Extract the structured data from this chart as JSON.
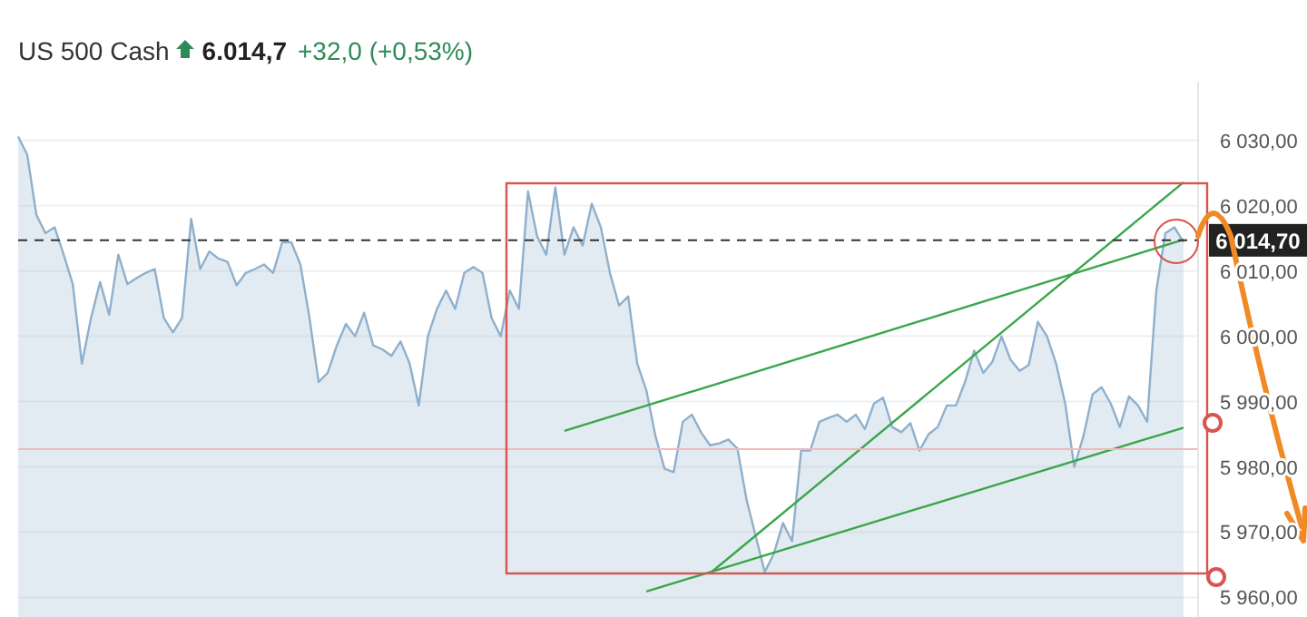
{
  "chart_data": {
    "type": "area",
    "title": "US 500 Cash",
    "annotations": [
      "6.014,7",
      "+32,0 (+0,53%)"
    ],
    "categories": [
      null,
      null,
      null,
      null,
      null,
      null,
      null,
      null,
      null,
      null,
      null,
      null,
      null,
      null,
      null,
      null,
      null,
      null,
      null,
      null,
      null,
      null,
      null,
      null,
      null,
      null,
      null,
      null,
      null,
      null,
      null,
      null,
      null,
      null,
      null,
      null,
      null,
      null,
      null,
      null,
      null,
      null,
      null,
      null,
      null,
      null,
      null,
      null,
      null,
      null,
      null,
      null,
      null,
      null,
      null,
      null,
      null,
      null,
      null,
      null,
      null,
      null,
      null,
      null,
      null,
      null,
      null,
      null,
      null,
      null,
      null,
      null,
      null,
      null,
      null,
      null,
      null,
      null,
      null,
      null,
      null,
      null,
      null,
      null,
      null,
      null,
      null,
      null,
      null,
      null,
      null,
      null,
      null,
      null,
      null,
      null,
      null,
      null,
      null,
      null,
      null,
      null,
      null,
      null,
      null,
      null,
      null,
      null,
      null,
      null,
      null,
      null,
      null,
      null,
      null,
      null,
      null,
      null,
      null,
      null,
      null,
      null,
      null,
      null,
      null,
      null,
      null,
      null,
      null
    ],
    "series": [
      {
        "color": "#8fb0cc",
        "values": [
          6030.6,
          6027.8,
          6018.6,
          6015.8,
          6016.7,
          6012.5,
          6008,
          5995.8,
          6002.8,
          6008.3,
          6003.3,
          6012.5,
          6008,
          6008.9,
          6009.7,
          6010.3,
          6002.8,
          6000.6,
          6002.8,
          6018,
          6010.3,
          6013,
          6011.9,
          6011.4,
          6007.8,
          6009.7,
          6010.3,
          6011,
          6009.7,
          6014.4,
          6014.4,
          6011,
          6002.8,
          5993,
          5994.4,
          5998.6,
          6001.9,
          6000,
          6003.6,
          5998.6,
          5998,
          5997,
          5999.2,
          5995.8,
          5989.4,
          6000,
          6004.2,
          6007,
          6004.2,
          6009.7,
          6010.6,
          6009.7,
          6002.8,
          6000,
          6007,
          6004.2,
          6022.2,
          6015.3,
          6012.5,
          6022.8,
          6012.5,
          6016.7,
          6013.9,
          6020.3,
          6016.7,
          6009.7,
          6004.7,
          6006.1,
          5995.8,
          5991.7,
          5984.7,
          5979.7,
          5979.2,
          5986.9,
          5988,
          5985.3,
          5983.3,
          5983.6,
          5984.2,
          5982.8,
          5975,
          5969.4,
          5963.9,
          5966.7,
          5971.4,
          5968.6,
          5982.5,
          5982.5,
          5986.9,
          5987.5,
          5988,
          5986.9,
          5988,
          5985.8,
          5989.7,
          5990.6,
          5986.1,
          5985.3,
          5986.7,
          5982.5,
          5985,
          5986.1,
          5989.4,
          5989.4,
          5993,
          5997.8,
          5994.4,
          5996.1,
          6000,
          5996.4,
          5994.7,
          5995.6,
          6002.2,
          6000,
          5995.8,
          5989.7,
          5980,
          5984.7,
          5991.1,
          5992.2,
          5989.7,
          5986.1,
          5990.8,
          5989.4,
          5986.9,
          6006.9,
          6015.8,
          6016.7,
          6014.4
        ]
      },
      {
        "type": "line",
        "color": "#3aa64a",
        "values": [
          null,
          null,
          null,
          null,
          null,
          null,
          null,
          null,
          null,
          null,
          null,
          null,
          null,
          null,
          null,
          null,
          null,
          null,
          null,
          null,
          null,
          null,
          null,
          null,
          null,
          null,
          null,
          null,
          null,
          null,
          null,
          null,
          null,
          null,
          null,
          null,
          null,
          null,
          null,
          null,
          null,
          null,
          null,
          null,
          null,
          null,
          null,
          null,
          null,
          null,
          null,
          null,
          null,
          null,
          null,
          null,
          null,
          null,
          null,
          null,
          5985.5,
          null,
          null,
          null,
          null,
          null,
          null,
          null,
          null,
          null,
          null,
          null,
          null,
          null,
          null,
          null,
          null,
          null,
          null,
          null,
          null,
          null,
          null,
          null,
          null,
          null,
          null,
          null,
          null,
          null,
          null,
          null,
          null,
          null,
          null,
          null,
          null,
          null,
          null,
          null,
          null,
          null,
          null,
          null,
          null,
          null,
          null,
          null,
          null,
          null,
          null,
          null,
          null,
          null,
          null,
          null,
          null,
          null,
          null,
          null,
          null,
          null,
          null,
          null,
          null,
          null,
          null,
          null,
          6014.8
        ]
      },
      {
        "type": "line",
        "color": "#3aa64a",
        "values": [
          null,
          null,
          null,
          null,
          null,
          null,
          null,
          null,
          null,
          null,
          null,
          null,
          null,
          null,
          null,
          null,
          null,
          null,
          null,
          null,
          null,
          null,
          null,
          null,
          null,
          null,
          null,
          null,
          null,
          null,
          null,
          null,
          null,
          null,
          null,
          null,
          null,
          null,
          null,
          null,
          null,
          null,
          null,
          null,
          null,
          null,
          null,
          null,
          null,
          null,
          null,
          null,
          null,
          null,
          null,
          null,
          null,
          null,
          null,
          null,
          null,
          null,
          null,
          null,
          null,
          null,
          null,
          null,
          null,
          5960.9,
          null,
          null,
          null,
          null,
          null,
          null,
          null,
          null,
          null,
          null,
          null,
          null,
          null,
          null,
          null,
          null,
          null,
          null,
          null,
          null,
          null,
          null,
          null,
          null,
          null,
          null,
          null,
          null,
          null,
          null,
          null,
          null,
          null,
          null,
          null,
          null,
          null,
          null,
          null,
          null,
          null,
          null,
          null,
          null,
          null,
          null,
          null,
          null,
          null,
          null,
          null,
          null,
          null,
          null,
          null,
          null,
          null,
          null,
          5986.0
        ]
      },
      {
        "type": "line",
        "color": "#3aa64a",
        "values": [
          null,
          null,
          null,
          null,
          null,
          null,
          null,
          null,
          null,
          null,
          null,
          null,
          null,
          null,
          null,
          null,
          null,
          null,
          null,
          null,
          null,
          null,
          null,
          null,
          null,
          null,
          null,
          null,
          null,
          null,
          null,
          null,
          null,
          null,
          null,
          null,
          null,
          null,
          null,
          null,
          null,
          null,
          null,
          null,
          null,
          null,
          null,
          null,
          null,
          null,
          null,
          null,
          null,
          null,
          null,
          null,
          null,
          null,
          null,
          null,
          null,
          null,
          null,
          null,
          null,
          null,
          null,
          null,
          null,
          null,
          null,
          null,
          null,
          null,
          null,
          null,
          5963.7,
          null,
          null,
          null,
          null,
          null,
          null,
          null,
          null,
          null,
          null,
          null,
          null,
          null,
          null,
          null,
          null,
          null,
          null,
          null,
          null,
          null,
          null,
          null,
          null,
          null,
          null,
          null,
          null,
          null,
          null,
          null,
          null,
          null,
          null,
          null,
          null,
          null,
          null,
          null,
          null,
          null,
          null,
          null,
          null,
          null,
          null,
          null,
          null,
          null,
          null,
          null,
          6023.6
        ]
      }
    ],
    "ylim": [
      5957,
      6039
    ],
    "yticks": [
      {
        "value": 5960,
        "label": "5 960,00"
      },
      {
        "value": 5970,
        "label": "5 970,00"
      },
      {
        "value": 5980,
        "label": "5 980,00"
      },
      {
        "value": 5990,
        "label": "5 990,00"
      },
      {
        "value": 6000,
        "label": "6 000,00"
      },
      {
        "value": 6010,
        "label": "6 010,00"
      },
      {
        "value": 6020,
        "label": "6 020,00"
      },
      {
        "value": 6030,
        "label": "6 030,00"
      }
    ],
    "ref_lines": [
      {
        "axis": "y",
        "value": 6014.7,
        "label": "6 014,70",
        "color": "#333333",
        "line_style": "dashed"
      },
      {
        "axis": "y",
        "value": 5982.7,
        "color": "#f0b8b8",
        "line_style": "solid"
      }
    ],
    "grid": "y"
  }
}
